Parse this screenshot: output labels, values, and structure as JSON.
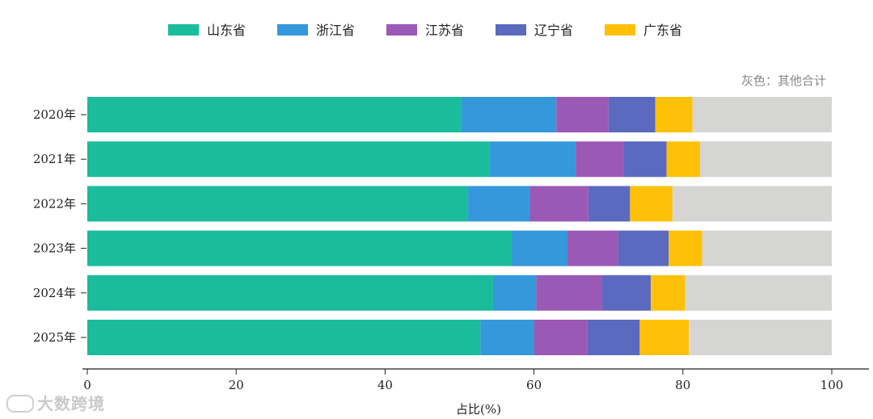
{
  "chart_data": {
    "type": "bar",
    "orientation": "horizontal",
    "stacked": true,
    "title": "",
    "xlabel": "占比(%)",
    "ylabel": "",
    "xlim": [
      0,
      100
    ],
    "xticks": [
      0,
      20,
      40,
      60,
      80,
      100
    ],
    "categories": [
      "2020年",
      "2021年",
      "2022年",
      "2023年",
      "2024年",
      "2025年"
    ],
    "series": [
      {
        "name": "山东省",
        "color": "#1abc9c",
        "values": [
          50.2,
          54.0,
          51.1,
          57.0,
          54.5,
          52.8
        ]
      },
      {
        "name": "浙江省",
        "color": "#3498db",
        "values": [
          12.8,
          11.6,
          8.3,
          7.5,
          5.8,
          7.2
        ]
      },
      {
        "name": "江苏省",
        "color": "#9b59b6",
        "values": [
          7.0,
          6.4,
          7.9,
          6.8,
          8.8,
          7.2
        ]
      },
      {
        "name": "辽宁省",
        "color": "#5b6abf",
        "values": [
          6.3,
          5.8,
          5.6,
          6.8,
          6.6,
          7.0
        ]
      },
      {
        "name": "广东省",
        "color": "#ffc107",
        "values": [
          5.0,
          4.5,
          5.7,
          4.5,
          4.6,
          6.6
        ]
      },
      {
        "name": "其他合计",
        "color": "#d5d5d3",
        "values": [
          18.7,
          17.7,
          21.4,
          17.4,
          19.7,
          19.2
        ]
      }
    ],
    "legend_position": "top-center",
    "annotation": "灰色：其他合计"
  },
  "watermark": "大数跨境"
}
